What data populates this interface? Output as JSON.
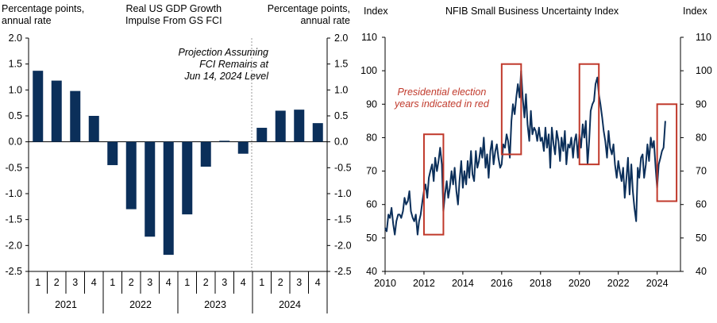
{
  "chart_data": [
    {
      "type": "bar",
      "title": "Real US GDP Growth Impulse From GS FCI",
      "title_lines": [
        "Real US GDP Growth",
        "Impulse From GS FCI"
      ],
      "left_axis_label": [
        "Percentage points,",
        "annual rate"
      ],
      "right_axis_label": [
        "Percentage points,",
        "annual rate"
      ],
      "annotation": [
        "Projection Assuming",
        "FCI Remains at",
        "Jun 14, 2024 Level"
      ],
      "categories": [
        "1",
        "2",
        "3",
        "4",
        "1",
        "2",
        "3",
        "4",
        "1",
        "2",
        "3",
        "4",
        "1",
        "2",
        "3",
        "4"
      ],
      "groups": [
        {
          "label": "2021",
          "quarters": [
            "1",
            "2",
            "3",
            "4"
          ]
        },
        {
          "label": "2022",
          "quarters": [
            "1",
            "2",
            "3",
            "4"
          ]
        },
        {
          "label": "2023",
          "quarters": [
            "1",
            "2",
            "3",
            "4"
          ]
        },
        {
          "label": "2024",
          "quarters": [
            "1",
            "2",
            "3",
            "4"
          ]
        }
      ],
      "values": [
        1.37,
        1.18,
        0.98,
        0.5,
        -0.45,
        -1.3,
        -1.83,
        -2.18,
        -1.4,
        -0.48,
        0.02,
        -0.23,
        0.27,
        0.6,
        0.62,
        0.36
      ],
      "projection_start_index": 12,
      "ylim": [
        -2.5,
        2.0
      ],
      "yticks": [
        "2.0",
        "1.5",
        "1.0",
        "0.5",
        "0.0",
        "-0.5",
        "-1.0",
        "-1.5",
        "-2.0",
        "-2.5"
      ],
      "ytick_values": [
        2.0,
        1.5,
        1.0,
        0.5,
        0.0,
        -0.5,
        -1.0,
        -1.5,
        -2.0,
        -2.5
      ],
      "bar_color": "#0b2f5a"
    },
    {
      "type": "line",
      "title": "NFIB Small Business Uncertainty Index",
      "left_axis_label": "Index",
      "right_axis_label": "Index",
      "annotation": [
        "Presidential election",
        "years indicated in red"
      ],
      "annotation_color": "#c0392b",
      "line_color": "#0b2f5a",
      "highlight_color": "#c0392b",
      "ylim": [
        40,
        110
      ],
      "yticks": [
        "110",
        "100",
        "90",
        "80",
        "70",
        "60",
        "50",
        "40"
      ],
      "ytick_values": [
        110,
        100,
        90,
        80,
        70,
        60,
        50,
        40
      ],
      "xlim": [
        2010,
        2025.2
      ],
      "xticks": [
        "2010",
        "2012",
        "2014",
        "2016",
        "2018",
        "2020",
        "2022",
        "2024"
      ],
      "xtick_values": [
        2010,
        2012,
        2014,
        2016,
        2018,
        2020,
        2022,
        2024
      ],
      "highlight_ranges": [
        {
          "x": [
            2012.0,
            2013.0
          ],
          "y": [
            51,
            81
          ]
        },
        {
          "x": [
            2016.0,
            2017.0
          ],
          "y": [
            75,
            102
          ]
        },
        {
          "x": [
            2020.0,
            2021.0
          ],
          "y": [
            72,
            102
          ]
        },
        {
          "x": [
            2024.0,
            2025.0
          ],
          "y": [
            61,
            90
          ]
        }
      ],
      "x": [
        2010.0,
        2010.08,
        2010.17,
        2010.25,
        2010.33,
        2010.42,
        2010.5,
        2010.58,
        2010.67,
        2010.75,
        2010.83,
        2010.92,
        2011.0,
        2011.08,
        2011.17,
        2011.25,
        2011.33,
        2011.42,
        2011.5,
        2011.58,
        2011.67,
        2011.75,
        2011.83,
        2011.92,
        2012.0,
        2012.08,
        2012.17,
        2012.25,
        2012.33,
        2012.42,
        2012.5,
        2012.58,
        2012.67,
        2012.75,
        2012.83,
        2012.92,
        2013.0,
        2013.08,
        2013.17,
        2013.25,
        2013.33,
        2013.42,
        2013.5,
        2013.58,
        2013.67,
        2013.75,
        2013.83,
        2013.92,
        2014.0,
        2014.08,
        2014.17,
        2014.25,
        2014.33,
        2014.42,
        2014.5,
        2014.58,
        2014.67,
        2014.75,
        2014.83,
        2014.92,
        2015.0,
        2015.08,
        2015.17,
        2015.25,
        2015.33,
        2015.42,
        2015.5,
        2015.58,
        2015.67,
        2015.75,
        2015.83,
        2015.92,
        2016.0,
        2016.08,
        2016.17,
        2016.25,
        2016.33,
        2016.42,
        2016.5,
        2016.58,
        2016.67,
        2016.75,
        2016.83,
        2016.92,
        2017.0,
        2017.08,
        2017.17,
        2017.25,
        2017.33,
        2017.42,
        2017.5,
        2017.58,
        2017.67,
        2017.75,
        2017.83,
        2017.92,
        2018.0,
        2018.08,
        2018.17,
        2018.25,
        2018.33,
        2018.42,
        2018.5,
        2018.58,
        2018.67,
        2018.75,
        2018.83,
        2018.92,
        2019.0,
        2019.08,
        2019.17,
        2019.25,
        2019.33,
        2019.42,
        2019.5,
        2019.58,
        2019.67,
        2019.75,
        2019.83,
        2019.92,
        2020.0,
        2020.08,
        2020.17,
        2020.25,
        2020.33,
        2020.42,
        2020.5,
        2020.58,
        2020.67,
        2020.75,
        2020.83,
        2020.92,
        2021.0,
        2021.08,
        2021.17,
        2021.25,
        2021.33,
        2021.42,
        2021.5,
        2021.58,
        2021.67,
        2021.75,
        2021.83,
        2021.92,
        2022.0,
        2022.08,
        2022.17,
        2022.25,
        2022.33,
        2022.42,
        2022.5,
        2022.58,
        2022.67,
        2022.75,
        2022.83,
        2022.92,
        2023.0,
        2023.08,
        2023.17,
        2023.25,
        2023.33,
        2023.42,
        2023.5,
        2023.58,
        2023.67,
        2023.75,
        2023.83,
        2023.92,
        2024.0,
        2024.08,
        2024.17,
        2024.25,
        2024.33,
        2024.42
      ],
      "values": [
        53,
        52,
        57,
        56,
        59,
        54,
        51,
        55,
        57,
        57,
        56,
        58,
        62,
        60,
        61,
        64,
        58,
        56,
        55,
        57,
        51,
        55,
        57,
        61,
        64,
        66,
        62,
        68,
        70,
        72,
        67,
        74,
        70,
        73,
        77,
        72,
        58,
        63,
        67,
        62,
        65,
        70,
        66,
        71,
        64,
        60,
        67,
        73,
        65,
        70,
        66,
        73,
        68,
        76,
        69,
        67,
        76,
        71,
        73,
        77,
        74,
        80,
        71,
        75,
        68,
        76,
        79,
        72,
        76,
        78,
        74,
        71,
        72,
        78,
        77,
        81,
        79,
        74,
        85,
        90,
        87,
        92,
        96,
        92,
        100,
        92,
        86,
        93,
        84,
        79,
        88,
        81,
        83,
        82,
        79,
        83,
        79,
        80,
        76,
        83,
        77,
        81,
        71,
        83,
        78,
        75,
        82,
        79,
        73,
        80,
        76,
        82,
        72,
        78,
        77,
        80,
        74,
        79,
        81,
        74,
        81,
        77,
        84,
        80,
        85,
        72,
        79,
        88,
        90,
        91,
        96,
        98,
        93,
        90,
        86,
        82,
        79,
        74,
        82,
        77,
        75,
        78,
        72,
        68,
        73,
        70,
        67,
        71,
        62,
        68,
        74,
        63,
        72,
        64,
        59,
        55,
        71,
        68,
        74,
        75,
        68,
        72,
        78,
        73,
        80,
        77,
        79,
        71,
        65,
        72,
        74,
        76,
        77,
        85
      ]
    }
  ]
}
